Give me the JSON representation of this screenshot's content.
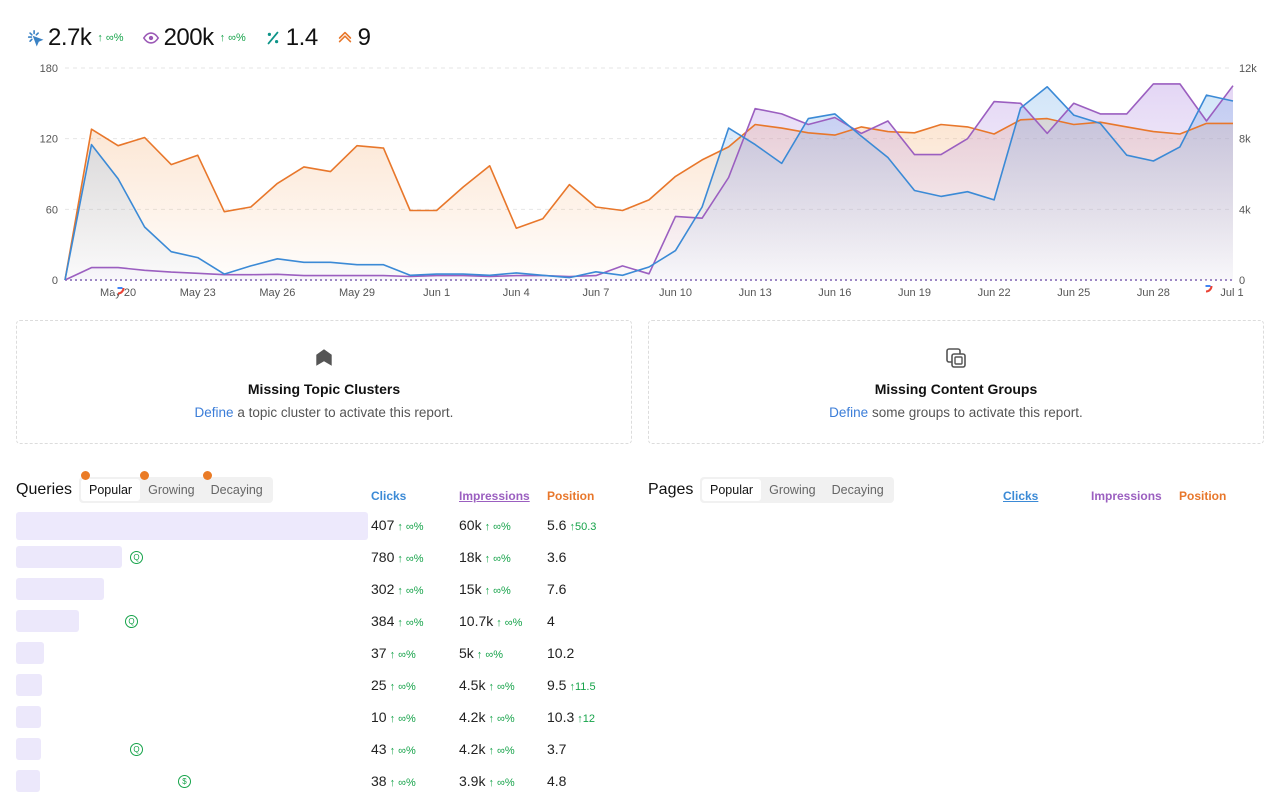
{
  "stats": [
    {
      "name": "clicks",
      "value": "2.7k",
      "delta": "↑ ∞%",
      "icon": "cursor-click-icon",
      "color": "#3b82c4"
    },
    {
      "name": "impressions",
      "value": "200k",
      "delta": "↑ ∞%",
      "icon": "eye-icon",
      "color": "#9b59b6"
    },
    {
      "name": "ctr",
      "value": "1.4",
      "delta": "",
      "icon": "percent-icon",
      "color": "#0d9488"
    },
    {
      "name": "position",
      "value": "9",
      "delta": "",
      "icon": "chevron-up-icon",
      "color": "#e8772b"
    }
  ],
  "chart_data": {
    "type": "line",
    "x": [
      "May 18",
      "May 19",
      "May 20",
      "May 21",
      "May 22",
      "May 23",
      "May 24",
      "May 25",
      "May 26",
      "May 27",
      "May 28",
      "May 29",
      "May 30",
      "May 31",
      "Jun 1",
      "Jun 2",
      "Jun 3",
      "Jun 4",
      "Jun 5",
      "Jun 6",
      "Jun 7",
      "Jun 8",
      "Jun 9",
      "Jun 10",
      "Jun 11",
      "Jun 12",
      "Jun 13",
      "Jun 14",
      "Jun 15",
      "Jun 16",
      "Jun 17",
      "Jun 18",
      "Jun 19",
      "Jun 20",
      "Jun 21",
      "Jun 22",
      "Jun 23",
      "Jun 24",
      "Jun 25",
      "Jun 26",
      "Jun 27",
      "Jun 28",
      "Jun 29",
      "Jun 30",
      "Jul 1"
    ],
    "x_ticks": [
      "May 20",
      "May 23",
      "May 26",
      "May 29",
      "Jun 1",
      "Jun 4",
      "Jun 7",
      "Jun 10",
      "Jun 13",
      "Jun 16",
      "Jun 19",
      "Jun 22",
      "Jun 25",
      "Jun 28",
      "Jul 1"
    ],
    "y_left_ticks": [
      "180",
      "120",
      "60",
      "0"
    ],
    "y_right_ticks": [
      "12k",
      "8k",
      "4k",
      "0"
    ],
    "ylim_left": [
      0,
      180
    ],
    "ylim_right": [
      0,
      12000
    ],
    "grid": true,
    "series": [
      {
        "axis": "left",
        "color": "#3b8ad6",
        "values": [
          0,
          115,
          86,
          45,
          24,
          19,
          5,
          12,
          18,
          15,
          15,
          13,
          13,
          4,
          5,
          5,
          4,
          6,
          4,
          2,
          7,
          4,
          11,
          25,
          62,
          129,
          115,
          99,
          137,
          141,
          122,
          104,
          76,
          71,
          75,
          68,
          146,
          164,
          140,
          133,
          106,
          101,
          113,
          157,
          152
        ]
      },
      {
        "axis": "right",
        "color": "#9b5fc0",
        "values": [
          0,
          700,
          700,
          550,
          450,
          380,
          300,
          300,
          320,
          250,
          250,
          250,
          250,
          200,
          250,
          250,
          200,
          250,
          250,
          200,
          250,
          800,
          350,
          3600,
          3500,
          5800,
          9700,
          9400,
          8800,
          9200,
          8300,
          9000,
          7100,
          7100,
          8000,
          10100,
          10000,
          8300,
          10000,
          9400,
          9400,
          11100,
          11100,
          9000,
          11000
        ]
      },
      {
        "axis": "left",
        "color": "#e8772b",
        "values": [
          0,
          128,
          114,
          121,
          98,
          106,
          58,
          62,
          82,
          96,
          92,
          114,
          112,
          59,
          59,
          79,
          97,
          44,
          52,
          81,
          62,
          59,
          68,
          88,
          102,
          113,
          132,
          129,
          125,
          123,
          130,
          126,
          125,
          132,
          130,
          124,
          136,
          137,
          132,
          134,
          130,
          126,
          124,
          133,
          133
        ]
      }
    ]
  },
  "cards": [
    {
      "title": "Missing Topic Clusters",
      "link": "Define",
      "desc": " a topic cluster to activate this report.",
      "icon": "topic-cluster-icon"
    },
    {
      "title": "Missing Content Groups",
      "link": "Define",
      "desc": " some groups to activate this report.",
      "icon": "content-groups-icon"
    }
  ],
  "queries": {
    "title": "Queries",
    "tabs": [
      "Popular",
      "Growing",
      "Decaying"
    ],
    "columns": {
      "clicks": "Clicks",
      "impressions": "Impressions",
      "position": "Position"
    },
    "rows": [
      {
        "clicks": "407",
        "clicks_delta": "↑ ∞%",
        "impr": "60k",
        "impr_delta": "↑ ∞%",
        "pos": "5.6",
        "pos_delta": "↑50.3",
        "bar": 1.0
      },
      {
        "clicks": "780",
        "clicks_delta": "↑ ∞%",
        "impr": "18k",
        "impr_delta": "↑ ∞%",
        "pos": "3.6",
        "pos_delta": "",
        "bar": 0.3
      },
      {
        "clicks": "302",
        "clicks_delta": "↑ ∞%",
        "impr": "15k",
        "impr_delta": "↑ ∞%",
        "pos": "7.6",
        "pos_delta": "",
        "bar": 0.25
      },
      {
        "clicks": "384",
        "clicks_delta": "↑ ∞%",
        "impr": "10.7k",
        "impr_delta": "↑ ∞%",
        "pos": "4",
        "pos_delta": "",
        "bar": 0.18
      },
      {
        "clicks": "37",
        "clicks_delta": "↑ ∞%",
        "impr": "5k",
        "impr_delta": "↑ ∞%",
        "pos": "10.2",
        "pos_delta": "",
        "bar": 0.08
      },
      {
        "clicks": "25",
        "clicks_delta": "↑ ∞%",
        "impr": "4.5k",
        "impr_delta": "↑ ∞%",
        "pos": "9.5",
        "pos_delta": "↑11.5",
        "bar": 0.075
      },
      {
        "clicks": "10",
        "clicks_delta": "↑ ∞%",
        "impr": "4.2k",
        "impr_delta": "↑ ∞%",
        "pos": "10.3",
        "pos_delta": "↑12",
        "bar": 0.07
      },
      {
        "clicks": "43",
        "clicks_delta": "↑ ∞%",
        "impr": "4.2k",
        "impr_delta": "↑ ∞%",
        "pos": "3.7",
        "pos_delta": "",
        "bar": 0.07
      },
      {
        "clicks": "38",
        "clicks_delta": "↑ ∞%",
        "impr": "3.9k",
        "impr_delta": "↑ ∞%",
        "pos": "4.8",
        "pos_delta": "",
        "bar": 0.065
      }
    ]
  },
  "pages": {
    "title": "Pages",
    "tabs": [
      "Popular",
      "Growing",
      "Decaying"
    ],
    "columns": {
      "clicks": "Clicks",
      "impressions": "Impressions",
      "position": "Position"
    }
  },
  "colors": {
    "clicks": "#3b8ad6",
    "impressions": "#9b5fc0",
    "position": "#e8772b",
    "up": "#16a34a",
    "link": "#3b7dd8"
  }
}
